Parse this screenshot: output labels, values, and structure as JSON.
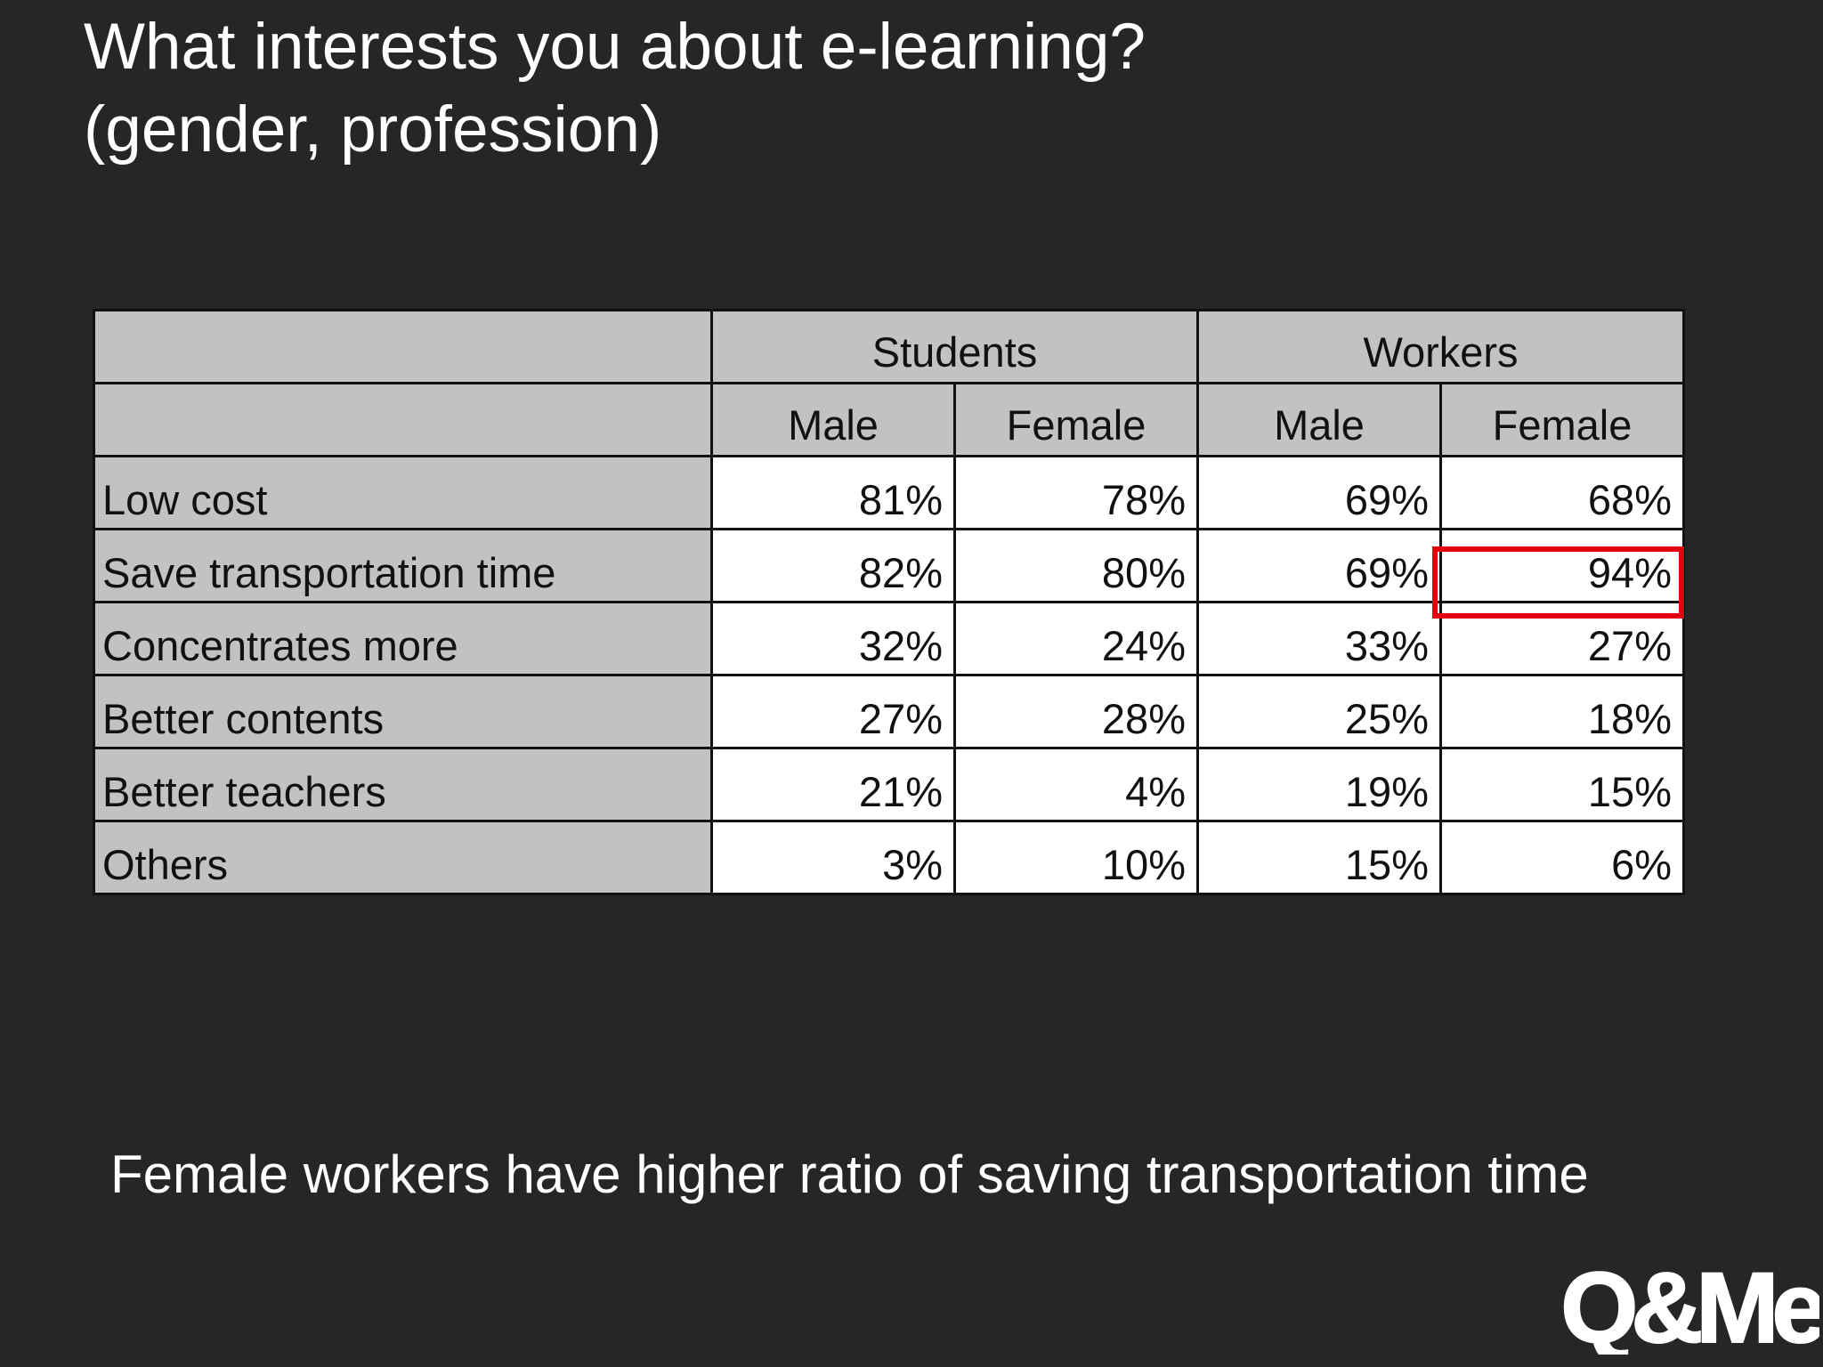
{
  "title_line1": "What interests you about e-learning?",
  "title_line2": "(gender, profession)",
  "table": {
    "groups": [
      "Students",
      "Workers"
    ],
    "subheaders": [
      "Male",
      "Female",
      "Male",
      "Female"
    ],
    "rows": [
      {
        "label": "Low cost",
        "values": [
          "81%",
          "78%",
          "69%",
          "68%"
        ]
      },
      {
        "label": "Save transportation time",
        "values": [
          "82%",
          "80%",
          "69%",
          "94%"
        ]
      },
      {
        "label": "Concentrates more",
        "values": [
          "32%",
          "24%",
          "33%",
          "27%"
        ]
      },
      {
        "label": "Better contents",
        "values": [
          "27%",
          "28%",
          "25%",
          "18%"
        ]
      },
      {
        "label": "Better teachers",
        "values": [
          "21%",
          "4%",
          "19%",
          "15%"
        ]
      },
      {
        "label": "Others",
        "values": [
          "3%",
          "10%",
          "15%",
          "6%"
        ]
      }
    ]
  },
  "caption": "Female workers have higher ratio of saving transportation time",
  "logo_text": "Q&Me",
  "colors": {
    "background": "#262626",
    "header_fill": "#c2c2c2",
    "cell_fill": "#ffffff",
    "highlight": "#e3000f"
  },
  "chart_data": {
    "type": "table",
    "title": "What interests you about e-learning? (gender, profession)",
    "column_groups": [
      {
        "name": "Students",
        "columns": [
          "Male",
          "Female"
        ]
      },
      {
        "name": "Workers",
        "columns": [
          "Male",
          "Female"
        ]
      }
    ],
    "columns": [
      "Students Male",
      "Students Female",
      "Workers Male",
      "Workers Female"
    ],
    "rows": [
      "Low cost",
      "Save transportation time",
      "Concentrates more",
      "Better contents",
      "Better teachers",
      "Others"
    ],
    "unit": "%",
    "values": [
      [
        81,
        78,
        69,
        68
      ],
      [
        82,
        80,
        69,
        94
      ],
      [
        32,
        24,
        33,
        27
      ],
      [
        27,
        28,
        25,
        18
      ],
      [
        21,
        4,
        19,
        15
      ],
      [
        3,
        10,
        15,
        6
      ]
    ],
    "highlighted_cell": {
      "row": "Save transportation time",
      "column": "Workers Female",
      "value": 94
    },
    "annotation": "Female workers have higher ratio of saving transportation time"
  }
}
